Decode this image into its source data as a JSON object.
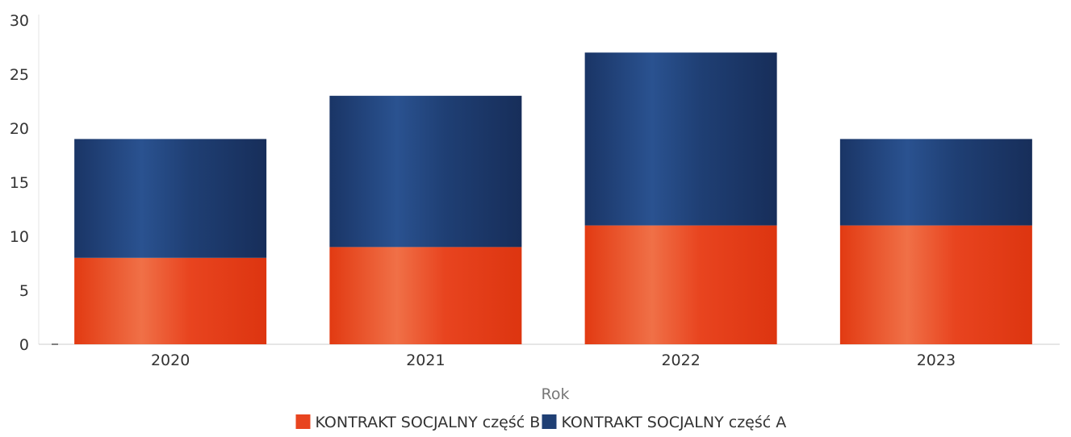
{
  "chart_data": {
    "type": "bar",
    "stacked": true,
    "categories": [
      "2020",
      "2021",
      "2022",
      "2023"
    ],
    "series": [
      {
        "name": "KONTRAKT SOCJALNY część B",
        "values": [
          8,
          9,
          11,
          11
        ],
        "color": "#e8441f"
      },
      {
        "name": "KONTRAKT SOCJALNY część A",
        "values": [
          11,
          14,
          16,
          8
        ],
        "color": "#1f3f74"
      }
    ],
    "xlabel": "Rok",
    "ylabel": "",
    "ylim": [
      0,
      30
    ],
    "yticks": [
      "0",
      "5",
      "10",
      "15",
      "20",
      "25",
      "30"
    ],
    "grid": false,
    "legend": "bottom-center"
  }
}
